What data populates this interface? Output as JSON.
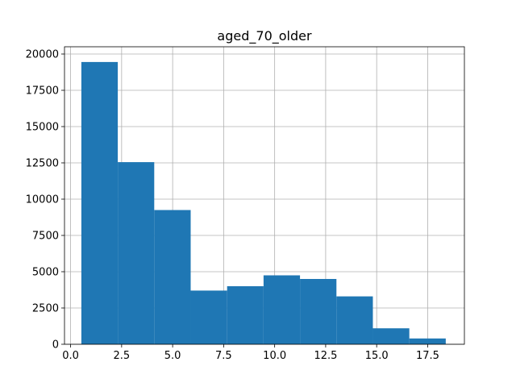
{
  "chart_data": {
    "type": "bar",
    "title": "aged_70_older",
    "xlabel": "",
    "ylabel": "",
    "xlim": [
      -0.3,
      19.3
    ],
    "ylim": [
      0,
      20500
    ],
    "grid": true,
    "bar_color": "#1f77b4",
    "bins": [
      {
        "x0": 0.526,
        "x1": 2.312,
        "value": 19450
      },
      {
        "x0": 2.312,
        "x1": 4.098,
        "value": 12550
      },
      {
        "x0": 4.098,
        "x1": 5.884,
        "value": 9250
      },
      {
        "x0": 5.884,
        "x1": 7.67,
        "value": 3700
      },
      {
        "x0": 7.67,
        "x1": 9.456,
        "value": 4000
      },
      {
        "x0": 9.456,
        "x1": 11.242,
        "value": 4750
      },
      {
        "x0": 11.242,
        "x1": 13.028,
        "value": 4500
      },
      {
        "x0": 13.028,
        "x1": 14.814,
        "value": 3300
      },
      {
        "x0": 14.814,
        "x1": 16.6,
        "value": 1100
      },
      {
        "x0": 16.6,
        "x1": 18.386,
        "value": 400
      }
    ],
    "x_ticks": [
      0.0,
      2.5,
      5.0,
      7.5,
      10.0,
      12.5,
      15.0,
      17.5
    ],
    "x_tick_labels": [
      "0.0",
      "2.5",
      "5.0",
      "7.5",
      "10.0",
      "12.5",
      "15.0",
      "17.5"
    ],
    "y_ticks": [
      0,
      2500,
      5000,
      7500,
      10000,
      12500,
      15000,
      17500,
      20000
    ],
    "y_tick_labels": [
      "0",
      "2500",
      "5000",
      "7500",
      "10000",
      "12500",
      "15000",
      "17500",
      "20000"
    ]
  }
}
